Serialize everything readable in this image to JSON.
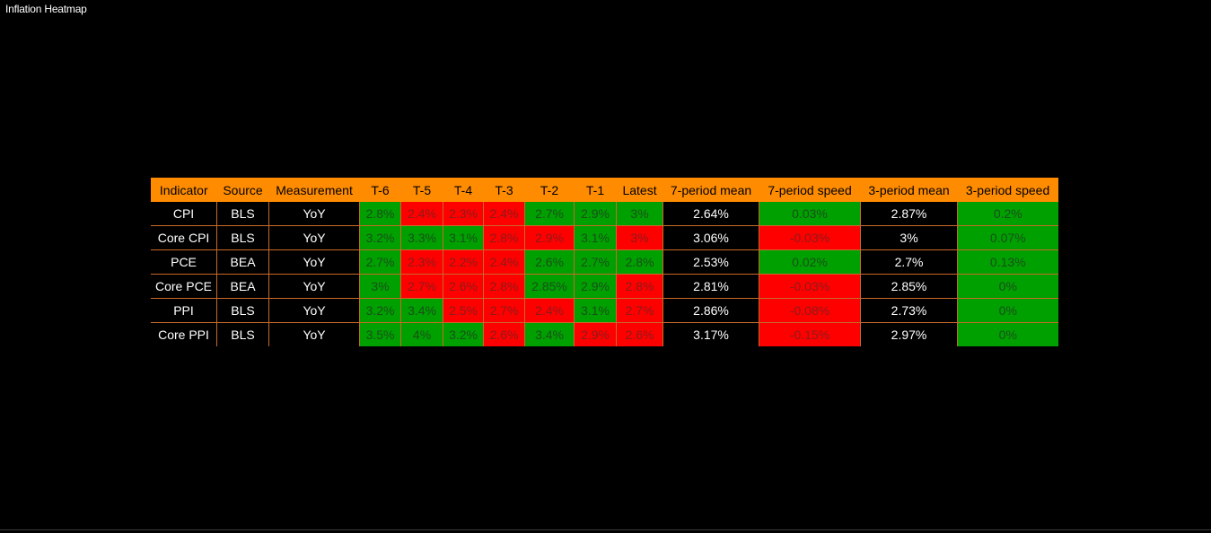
{
  "title": "Inflation Heatmap",
  "colors": {
    "header_bg": "#ff8c00",
    "green": "#00a000",
    "red": "#ff0000",
    "background": "#000000",
    "grid_line": "#c86a2a"
  },
  "table": {
    "headers": [
      "Indicator",
      "Source",
      "Measurement",
      "T-6",
      "T-5",
      "T-4",
      "T-3",
      "T-2",
      "T-1",
      "Latest",
      "7-period mean",
      "7-period speed",
      "3-period mean",
      "3-period speed"
    ],
    "rows": [
      {
        "cells": [
          "CPI",
          "BLS",
          "YoY",
          "2.8%",
          "2.4%",
          "2.3%",
          "2.4%",
          "2.7%",
          "2.9%",
          "3%",
          "2.64%",
          "0.03%",
          "2.87%",
          "0.2%"
        ],
        "colors": [
          "black",
          "black",
          "black",
          "green",
          "red",
          "red",
          "red",
          "green",
          "green",
          "green",
          "black",
          "green",
          "black",
          "green"
        ]
      },
      {
        "cells": [
          "Core CPI",
          "BLS",
          "YoY",
          "3.2%",
          "3.3%",
          "3.1%",
          "2.8%",
          "2.9%",
          "3.1%",
          "3%",
          "3.06%",
          "-0.03%",
          "3%",
          "0.07%"
        ],
        "colors": [
          "black",
          "black",
          "black",
          "green",
          "green",
          "green",
          "red",
          "red",
          "green",
          "red",
          "black",
          "red",
          "black",
          "green"
        ]
      },
      {
        "cells": [
          "PCE",
          "BEA",
          "YoY",
          "2.7%",
          "2.3%",
          "2.2%",
          "2.4%",
          "2.6%",
          "2.7%",
          "2.8%",
          "2.53%",
          "0.02%",
          "2.7%",
          "0.13%"
        ],
        "colors": [
          "black",
          "black",
          "black",
          "green",
          "red",
          "red",
          "red",
          "green",
          "green",
          "green",
          "black",
          "green",
          "black",
          "green"
        ]
      },
      {
        "cells": [
          "Core PCE",
          "BEA",
          "YoY",
          "3%",
          "2.7%",
          "2.6%",
          "2.8%",
          "2.85%",
          "2.9%",
          "2.8%",
          "2.81%",
          "-0.03%",
          "2.85%",
          "0%"
        ],
        "colors": [
          "black",
          "black",
          "black",
          "green",
          "red",
          "red",
          "red",
          "green",
          "green",
          "red",
          "black",
          "red",
          "black",
          "green"
        ]
      },
      {
        "cells": [
          "PPI",
          "BLS",
          "YoY",
          "3.2%",
          "3.4%",
          "2.5%",
          "2.7%",
          "2.4%",
          "3.1%",
          "2.7%",
          "2.86%",
          "-0.08%",
          "2.73%",
          "0%"
        ],
        "colors": [
          "black",
          "black",
          "black",
          "green",
          "green",
          "red",
          "red",
          "red",
          "green",
          "red",
          "black",
          "red",
          "black",
          "green"
        ]
      },
      {
        "cells": [
          "Core PPI",
          "BLS",
          "YoY",
          "3.5%",
          "4%",
          "3.2%",
          "2.6%",
          "3.4%",
          "2.9%",
          "2.6%",
          "3.17%",
          "-0.15%",
          "2.97%",
          "0%"
        ],
        "colors": [
          "black",
          "black",
          "black",
          "green",
          "green",
          "green",
          "red",
          "green",
          "red",
          "red",
          "black",
          "red",
          "black",
          "green"
        ]
      }
    ]
  }
}
